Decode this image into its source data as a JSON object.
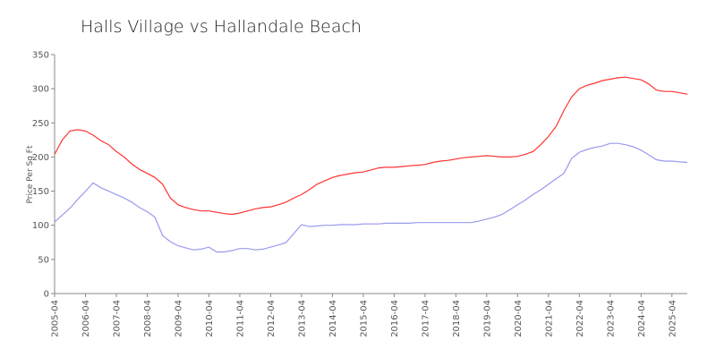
{
  "chart_data": {
    "type": "line",
    "title": "Halls Village vs Hallandale Beach",
    "y_label": "Price Per Sq Ft",
    "x": [
      "2005-04",
      "2005-07",
      "2005-10",
      "2006-01",
      "2006-04",
      "2006-07",
      "2006-10",
      "2007-01",
      "2007-04",
      "2007-07",
      "2007-10",
      "2008-01",
      "2008-04",
      "2008-07",
      "2008-10",
      "2009-01",
      "2009-04",
      "2009-07",
      "2009-10",
      "2010-01",
      "2010-04",
      "2010-07",
      "2010-10",
      "2011-01",
      "2011-04",
      "2011-07",
      "2011-10",
      "2012-01",
      "2012-04",
      "2012-07",
      "2012-10",
      "2013-01",
      "2013-04",
      "2013-07",
      "2013-10",
      "2014-01",
      "2014-04",
      "2014-07",
      "2014-10",
      "2015-01",
      "2015-04",
      "2015-07",
      "2015-10",
      "2016-01",
      "2016-04",
      "2016-07",
      "2016-10",
      "2017-01",
      "2017-04",
      "2017-07",
      "2017-10",
      "2018-01",
      "2018-04",
      "2018-07",
      "2018-10",
      "2019-01",
      "2019-04",
      "2019-07",
      "2019-10",
      "2020-01",
      "2020-04",
      "2020-07",
      "2020-10",
      "2021-01",
      "2021-04",
      "2021-07",
      "2021-10",
      "2022-01",
      "2022-04",
      "2022-07",
      "2022-10",
      "2023-01",
      "2023-04",
      "2023-07",
      "2023-10",
      "2024-01",
      "2024-04",
      "2024-07",
      "2024-10",
      "2025-01",
      "2025-04",
      "2025-07",
      "2025-10"
    ],
    "series": [
      {
        "color": "#ff3333",
        "values": [
          204,
          225,
          238,
          240,
          238,
          232,
          224,
          218,
          208,
          200,
          190,
          182,
          176,
          170,
          160,
          140,
          130,
          126,
          123,
          121,
          121,
          119,
          117,
          116,
          118,
          121,
          124,
          126,
          127,
          130,
          134,
          140,
          145,
          152,
          160,
          165,
          170,
          173,
          175,
          177,
          178,
          181,
          184,
          185,
          185,
          186,
          187,
          188,
          189,
          192,
          194,
          195,
          197,
          199,
          200,
          201,
          202,
          201,
          200,
          200,
          201,
          204,
          208,
          218,
          230,
          245,
          268,
          288,
          300,
          305,
          308,
          312,
          314,
          316,
          317,
          315,
          313,
          307,
          298,
          296,
          296,
          294,
          292
        ]
      },
      {
        "color": "#9999ee",
        "values": [
          105,
          115,
          125,
          138,
          150,
          162,
          155,
          150,
          145,
          140,
          134,
          126,
          120,
          112,
          85,
          76,
          70,
          67,
          64,
          65,
          68,
          61,
          61,
          63,
          66,
          66,
          64,
          65,
          68,
          71,
          75,
          88,
          101,
          98,
          99,
          100,
          100,
          101,
          101,
          101,
          102,
          102,
          102,
          103,
          103,
          103,
          103,
          104,
          104,
          104,
          104,
          104,
          104,
          104,
          104,
          106,
          109,
          112,
          116,
          123,
          130,
          137,
          145,
          152,
          160,
          168,
          176,
          198,
          207,
          211,
          214,
          216,
          220,
          220,
          218,
          215,
          210,
          203,
          196,
          194,
          194,
          193,
          192
        ]
      }
    ],
    "xlim": [
      "2005-04",
      "2025-10"
    ],
    "xticks": [
      "2005-04",
      "2006-04",
      "2007-04",
      "2008-04",
      "2009-04",
      "2010-04",
      "2011-04",
      "2012-04",
      "2013-04",
      "2014-04",
      "2015-04",
      "2016-04",
      "2017-04",
      "2018-04",
      "2019-04",
      "2020-04",
      "2021-04",
      "2022-04",
      "2023-04",
      "2024-04",
      "2025-04"
    ],
    "ylim": [
      0,
      350
    ],
    "yticks": [
      0,
      50,
      100,
      150,
      200,
      250,
      300,
      350
    ],
    "grid": false
  }
}
